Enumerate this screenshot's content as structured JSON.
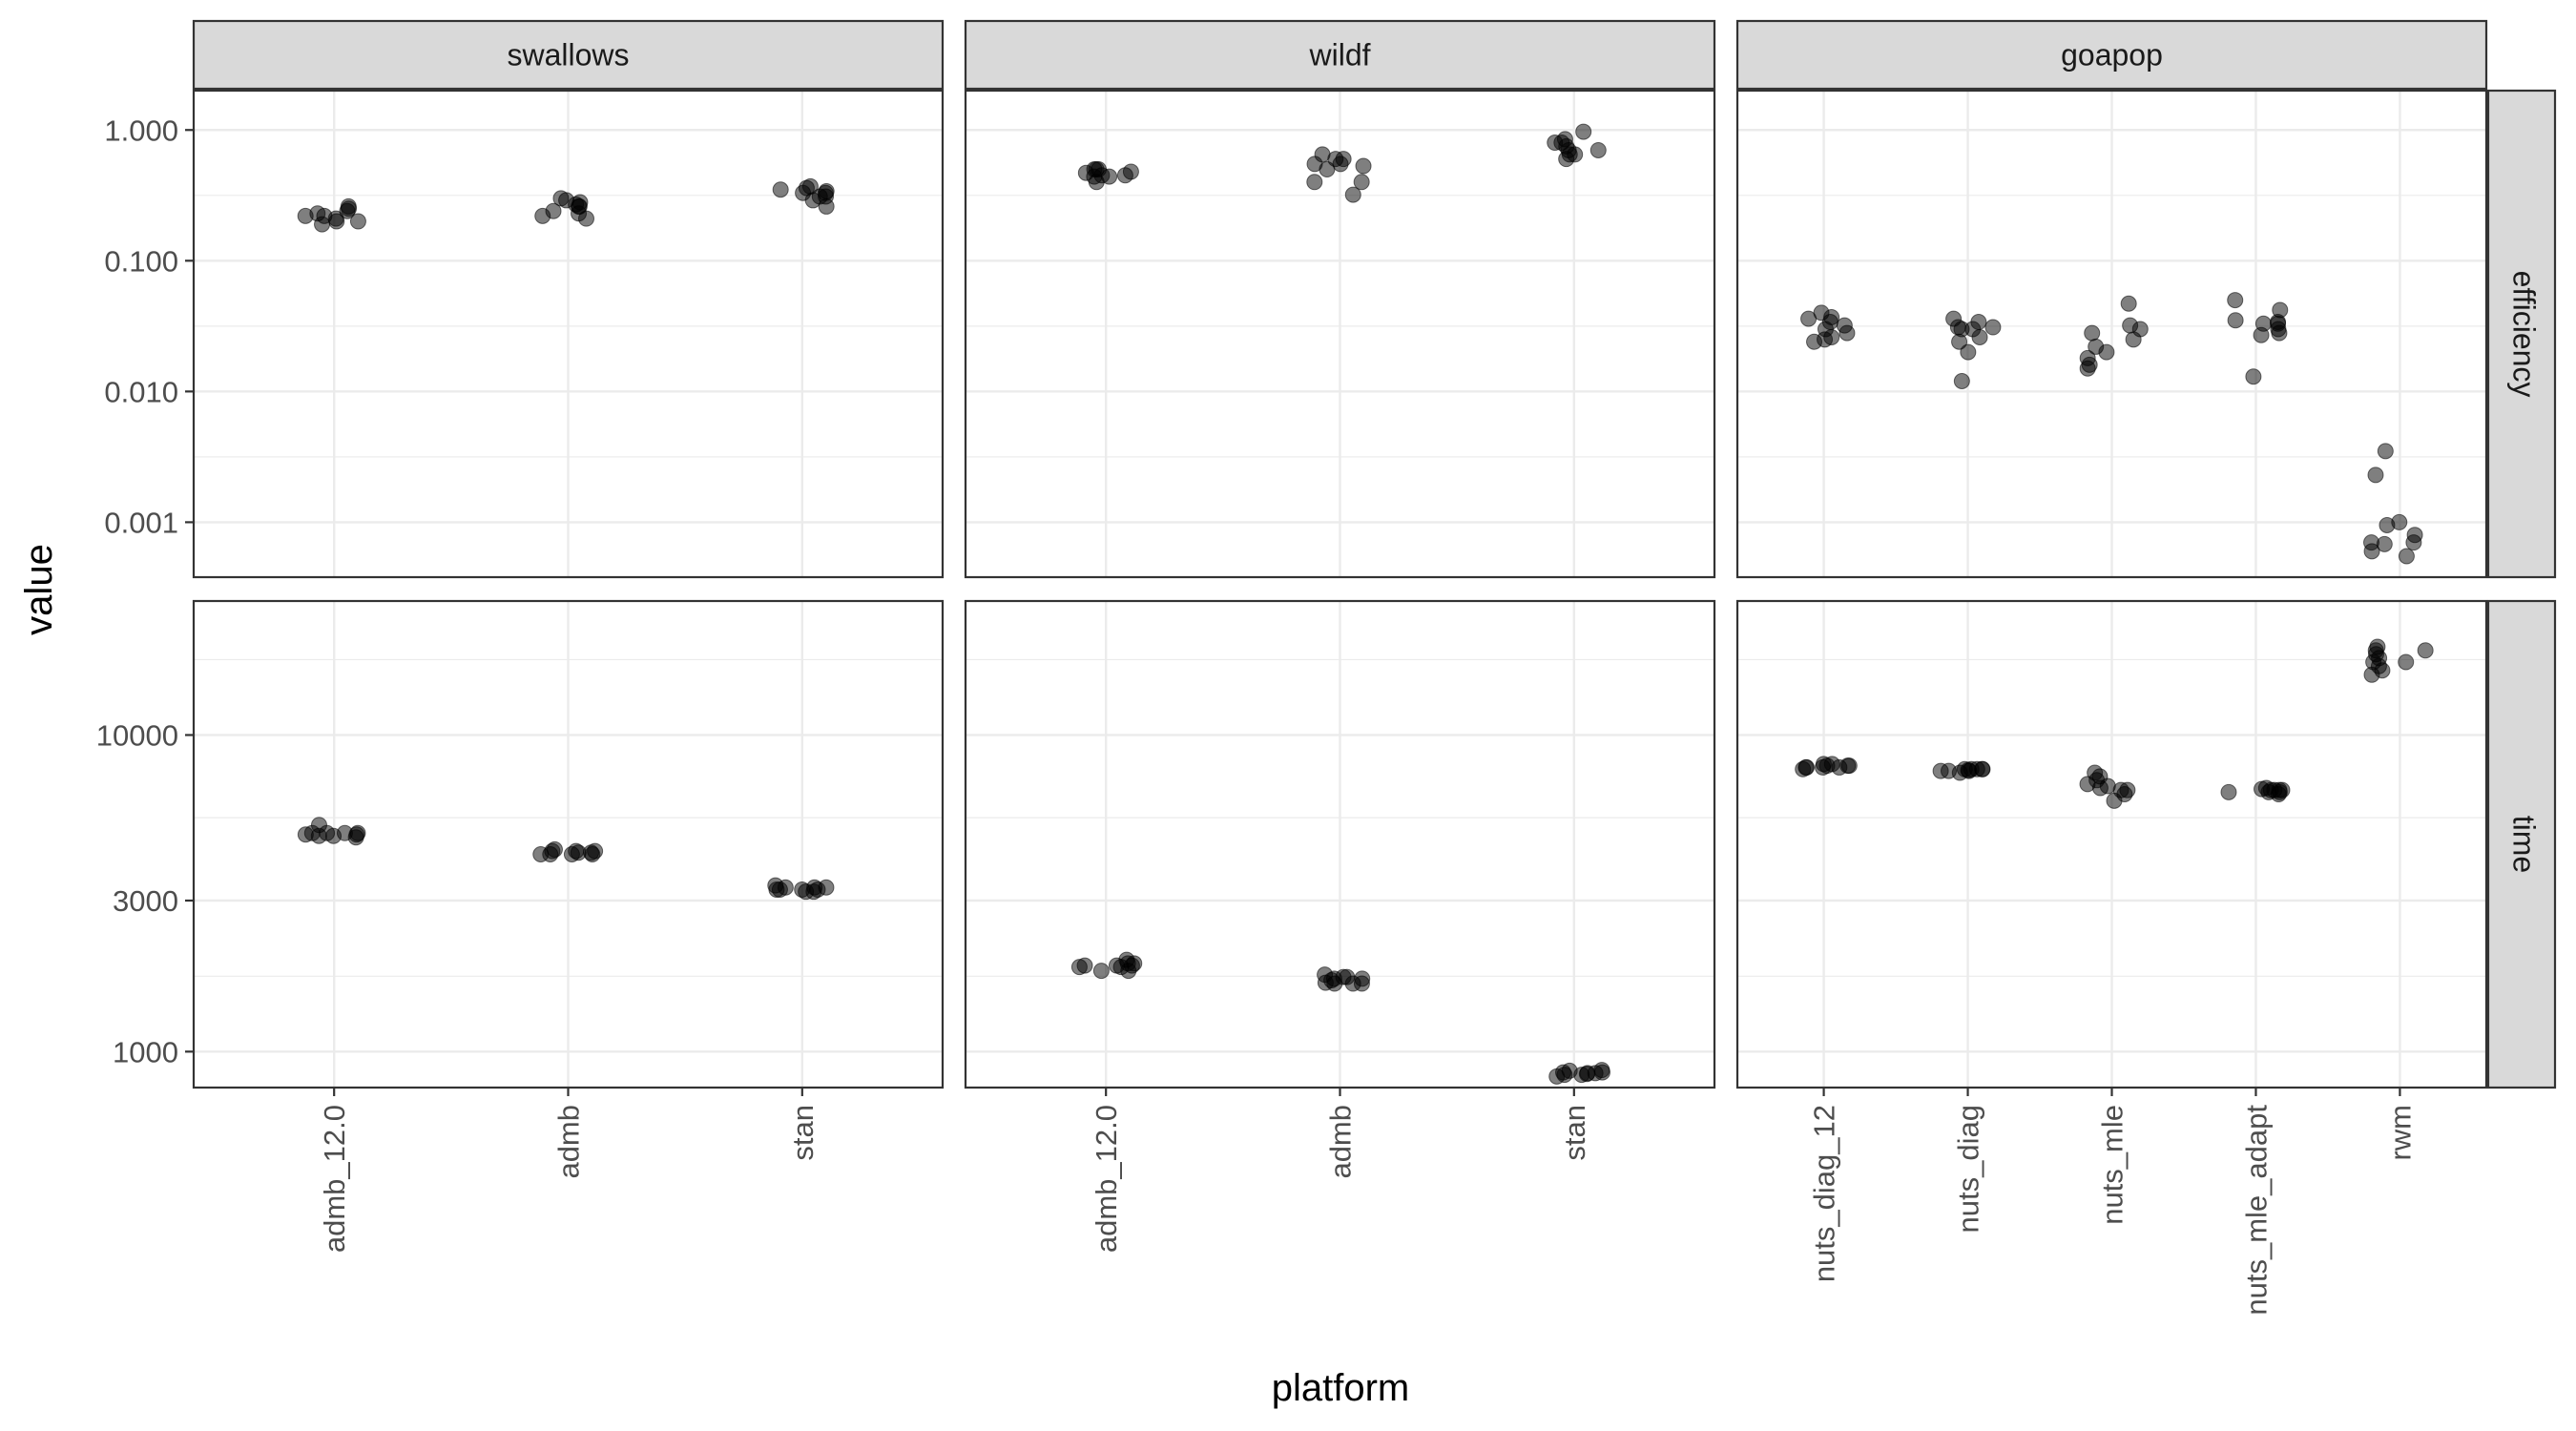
{
  "chart_data": {
    "type": "scatter",
    "theme": "bw",
    "xlabel": "platform",
    "ylabel": "value",
    "point_color": "#000000",
    "point_opacity": 0.5,
    "panel_border_color": "#333333",
    "grid_color": "#ebebeb",
    "strip_fill": "#d9d9d9",
    "y_scale": "log10",
    "columns": [
      {
        "name": "swallows",
        "categories": [
          "admb_12.0",
          "admb",
          "stan"
        ]
      },
      {
        "name": "wildf",
        "categories": [
          "admb_12.0",
          "admb",
          "stan"
        ]
      },
      {
        "name": "goapop",
        "categories": [
          "nuts_diag_12",
          "nuts_diag",
          "nuts_mle",
          "nuts_mle_adapt",
          "rwm"
        ]
      }
    ],
    "rows": [
      {
        "name": "efficiency",
        "ylim": [
          0.00038,
          2.0
        ],
        "major_ticks": [
          0.001,
          0.01,
          0.1,
          1
        ],
        "tick_labels": [
          "0.001",
          "0.010",
          "0.100",
          "1.000"
        ],
        "minor_ticks": [
          0.000316,
          0.00316,
          0.0316,
          0.316
        ]
      },
      {
        "name": "time",
        "ylim": [
          770,
          26500
        ],
        "major_ticks": [
          1000,
          3000,
          10000
        ],
        "tick_labels": [
          "1000",
          "3000",
          "10000"
        ],
        "minor_ticks": [
          1730,
          5480,
          17300
        ]
      }
    ],
    "panels": [
      {
        "row": "efficiency",
        "column": "swallows",
        "points": {
          "admb_12.0": [
            0.22,
            0.2,
            0.19,
            0.23,
            0.24,
            0.21,
            0.22,
            0.26,
            0.25,
            0.2
          ],
          "admb": [
            0.26,
            0.27,
            0.21,
            0.24,
            0.3,
            0.28,
            0.26,
            0.22,
            0.23,
            0.29
          ],
          "stan": [
            0.26,
            0.31,
            0.35,
            0.33,
            0.34,
            0.29,
            0.37,
            0.36,
            0.31,
            0.33
          ]
        }
      },
      {
        "row": "efficiency",
        "column": "wildf",
        "points": {
          "admb_12.0": [
            0.5,
            0.4,
            0.45,
            0.5,
            0.47,
            0.5,
            0.45,
            0.44,
            0.48,
            0.44
          ],
          "admb": [
            0.32,
            0.4,
            0.55,
            0.5,
            0.6,
            0.55,
            0.6,
            0.65,
            0.53,
            0.4
          ],
          "stan": [
            0.75,
            0.85,
            0.97,
            0.7,
            0.65,
            0.8,
            0.7,
            0.8,
            0.6,
            0.65
          ]
        }
      },
      {
        "row": "efficiency",
        "column": "goapop",
        "points": {
          "nuts_diag_12": [
            0.024,
            0.03,
            0.034,
            0.036,
            0.028,
            0.04,
            0.032,
            0.026,
            0.037,
            0.025
          ],
          "nuts_diag": [
            0.02,
            0.034,
            0.031,
            0.012,
            0.026,
            0.036,
            0.03,
            0.024,
            0.031,
            0.03
          ],
          "nuts_mle": [
            0.047,
            0.025,
            0.016,
            0.032,
            0.018,
            0.02,
            0.028,
            0.015,
            0.03,
            0.022
          ],
          "nuts_mle_adapt": [
            0.033,
            0.035,
            0.013,
            0.027,
            0.05,
            0.042,
            0.034,
            0.03,
            0.033,
            0.028
          ],
          "rwm": [
            0.0008,
            0.00095,
            0.0006,
            0.0035,
            0.0023,
            0.0007,
            0.00055,
            0.00068,
            0.0007,
            0.001
          ]
        }
      },
      {
        "row": "time",
        "column": "swallows",
        "points": {
          "admb_12.0": [
            4900,
            5200,
            4750,
            4800,
            4900,
            4850,
            4900,
            4800,
            4850,
            4900
          ],
          "admb": [
            4300,
            4200,
            4200,
            4250,
            4200,
            4300,
            4200,
            4250,
            4350,
            4300
          ],
          "stan": [
            3300,
            3200,
            3250,
            3250,
            3200,
            3300,
            3250,
            3350,
            3250,
            3300
          ]
        }
      },
      {
        "row": "time",
        "column": "wildf",
        "points": {
          "admb_12.0": [
            1870,
            1870,
            1800,
            1850,
            1900,
            1950,
            1900,
            1870,
            1850,
            1800
          ],
          "admb": [
            1650,
            1640,
            1640,
            1700,
            1750,
            1640,
            1700,
            1720,
            1680,
            1720
          ],
          "stan": [
            855,
            845,
            850,
            870,
            835,
            860,
            875,
            860,
            845,
            855
          ]
        }
      },
      {
        "row": "time",
        "column": "goapop",
        "points": {
          "nuts_diag_12": [
            8000,
            7900,
            8100,
            7800,
            8100,
            8000,
            7900,
            8000,
            7900,
            7900
          ],
          "nuts_diag": [
            7800,
            7700,
            7800,
            7700,
            7800,
            7750,
            7800,
            7600,
            7800,
            7700
          ],
          "nuts_mle": [
            6800,
            6200,
            7600,
            6500,
            7400,
            7200,
            6700,
            6900,
            7000,
            6700
          ],
          "nuts_mle_adapt": [
            6700,
            6600,
            6700,
            6800,
            6700,
            6600,
            6700,
            6750,
            6600,
            6500
          ],
          "rwm": [
            17000,
            17500,
            18500,
            19000,
            18000,
            15500,
            17000,
            18500,
            16000,
            16500
          ]
        }
      }
    ]
  }
}
